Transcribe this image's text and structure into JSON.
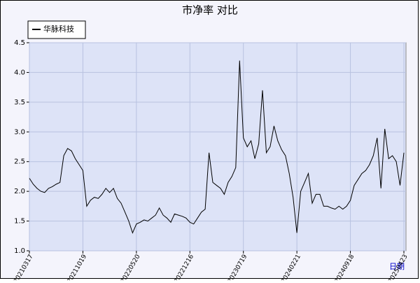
{
  "chart_data": {
    "type": "line",
    "title": "市净率  对比",
    "x_label": "日期",
    "categories": [
      "20210317",
      null,
      null,
      null,
      null,
      null,
      null,
      null,
      null,
      null,
      null,
      null,
      null,
      null,
      "20211019",
      null,
      null,
      null,
      null,
      null,
      null,
      null,
      null,
      null,
      null,
      null,
      null,
      null,
      "20220520",
      null,
      null,
      null,
      null,
      null,
      null,
      null,
      null,
      null,
      null,
      null,
      null,
      null,
      "20221216",
      null,
      null,
      null,
      null,
      null,
      null,
      null,
      null,
      null,
      null,
      null,
      null,
      null,
      "20230719",
      null,
      null,
      null,
      null,
      null,
      null,
      null,
      null,
      null,
      null,
      null,
      null,
      null,
      "20240221",
      null,
      null,
      null,
      null,
      null,
      null,
      null,
      null,
      null,
      null,
      null,
      null,
      null,
      "20240918",
      null,
      null,
      null,
      null,
      null,
      null,
      null,
      null,
      null,
      null,
      null,
      null,
      null,
      "20250423"
    ],
    "series": [
      {
        "name": "华脉科技",
        "color": "#000000",
        "values": [
          2.22,
          2.12,
          2.05,
          2.0,
          1.98,
          2.05,
          2.08,
          2.12,
          2.15,
          2.6,
          2.72,
          2.68,
          2.55,
          2.45,
          2.35,
          1.75,
          1.85,
          1.9,
          1.88,
          1.95,
          2.05,
          1.98,
          2.05,
          1.88,
          1.8,
          1.65,
          1.5,
          1.3,
          1.45,
          1.48,
          1.52,
          1.5,
          1.55,
          1.6,
          1.72,
          1.6,
          1.55,
          1.48,
          1.62,
          1.6,
          1.58,
          1.55,
          1.48,
          1.45,
          1.55,
          1.65,
          1.7,
          2.65,
          2.15,
          2.1,
          2.05,
          1.95,
          2.15,
          2.25,
          2.4,
          4.2,
          2.9,
          2.75,
          2.85,
          2.55,
          2.8,
          3.7,
          2.65,
          2.75,
          3.1,
          2.85,
          2.7,
          2.6,
          2.3,
          1.9,
          1.3,
          2.0,
          2.15,
          2.3,
          1.8,
          1.95,
          1.95,
          1.75,
          1.75,
          1.72,
          1.7,
          1.75,
          1.7,
          1.75,
          1.85,
          2.1,
          2.2,
          2.3,
          2.35,
          2.45,
          2.6,
          2.9,
          2.05,
          3.05,
          2.55,
          2.6,
          2.5,
          2.1,
          2.65
        ]
      }
    ],
    "ylim": [
      1.0,
      4.5
    ],
    "yticks": [
      {
        "value": 1.0,
        "label": "1.0"
      },
      1.5,
      {
        "value": 2.0,
        "label": "2.0"
      },
      2.5,
      {
        "value": 3.0,
        "label": "3.0"
      },
      3.5,
      {
        "value": 4.0,
        "label": "4.0"
      },
      4.5
    ],
    "grid": true
  }
}
